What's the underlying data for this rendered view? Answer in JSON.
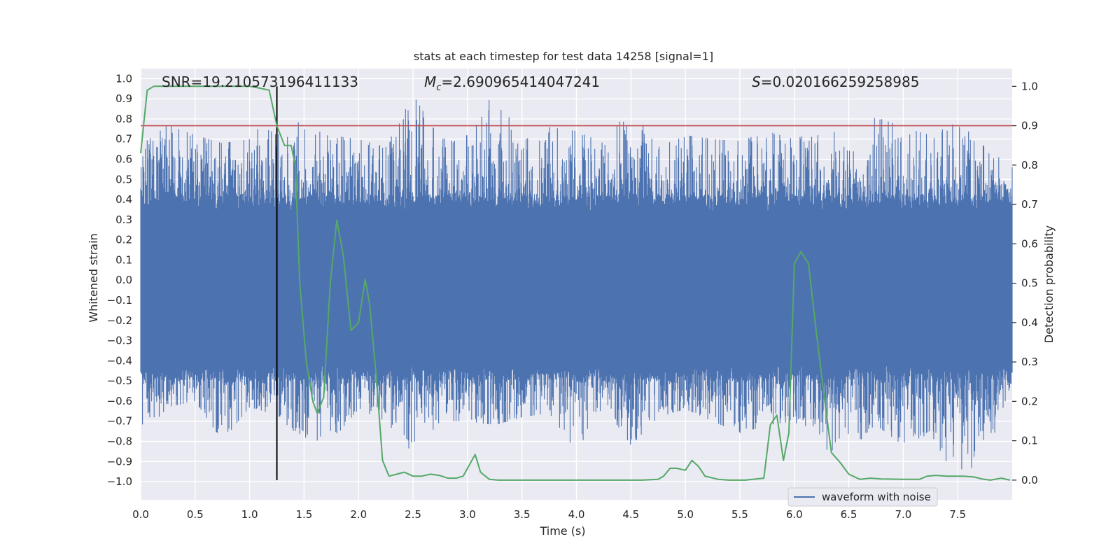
{
  "chart_data": {
    "type": "line",
    "title": "stats at each timestep for test data 14258 [signal=1]",
    "xlabel": "Time (s)",
    "ylabel": "Whitened strain",
    "ylabel_right": "Detection probability",
    "xlim": [
      0.0,
      8.0
    ],
    "ylim": [
      -1.09,
      1.05
    ],
    "ylim_right": [
      -0.05,
      1.045
    ],
    "xticks": [
      0.0,
      0.5,
      1.0,
      1.5,
      2.0,
      2.5,
      3.0,
      3.5,
      4.0,
      4.5,
      5.0,
      5.5,
      6.0,
      6.5,
      7.0,
      7.5
    ],
    "xtick_labels": [
      "0.0",
      "0.5",
      "1.0",
      "1.5",
      "2.0",
      "2.5",
      "3.0",
      "3.5",
      "4.0",
      "4.5",
      "5.0",
      "5.5",
      "6.0",
      "6.5",
      "7.0",
      "7.5"
    ],
    "yticks": [
      1.0,
      0.9,
      0.8,
      0.7,
      0.6,
      0.5,
      0.4,
      0.3,
      0.2,
      0.1,
      0.0,
      -0.1,
      -0.2,
      -0.3,
      -0.4,
      -0.5,
      -0.6,
      -0.7,
      -0.8,
      -0.9,
      -1.0
    ],
    "ytick_labels": [
      "1.0",
      "0.9",
      "0.8",
      "0.7",
      "0.6",
      "0.5",
      "0.4",
      "0.3",
      "0.2",
      "0.1",
      "0.0",
      "−0.1",
      "−0.2",
      "−0.3",
      "−0.4",
      "−0.5",
      "−0.6",
      "−0.7",
      "−0.8",
      "−0.9",
      "−1.0"
    ],
    "yticks_right": [
      1.0,
      0.9,
      0.8,
      0.7,
      0.6,
      0.5,
      0.4,
      0.3,
      0.2,
      0.1,
      0.0
    ],
    "ytick_right_labels": [
      "1.0",
      "0.9",
      "0.8",
      "0.7",
      "0.6",
      "0.5",
      "0.4",
      "0.3",
      "0.2",
      "0.1",
      "0.0"
    ],
    "annotations": {
      "snr": "SNR=19.210573196411133",
      "mc_symbol": "M",
      "mc_sub": "c",
      "mc_value": "=2.690965414047241",
      "s_symbol": "S",
      "s_value": "=0.020166259258985"
    },
    "threshold": 0.9,
    "event_time": 1.25,
    "legend": [
      "waveform with noise"
    ],
    "series": [
      {
        "name": "waveform with noise",
        "color": "#4c72b0",
        "kind": "noise-envelope",
        "x": [
          0.0,
          0.25,
          0.5,
          0.75,
          1.0,
          1.25,
          1.5,
          1.75,
          2.0,
          2.25,
          2.5,
          2.75,
          3.0,
          3.25,
          3.5,
          3.75,
          4.0,
          4.25,
          4.5,
          4.75,
          5.0,
          5.25,
          5.5,
          5.75,
          6.0,
          6.25,
          6.5,
          6.75,
          7.0,
          7.25,
          7.5,
          7.75,
          8.0
        ],
        "upper": [
          0.67,
          0.77,
          0.72,
          0.68,
          0.7,
          0.87,
          0.76,
          0.72,
          0.7,
          0.66,
          0.92,
          0.7,
          0.72,
          0.94,
          0.69,
          0.76,
          0.74,
          0.68,
          0.86,
          0.66,
          0.72,
          0.7,
          0.69,
          0.74,
          0.7,
          0.75,
          0.72,
          0.81,
          0.76,
          0.72,
          0.79,
          0.66,
          0.56
        ],
        "lower": [
          -0.78,
          -0.63,
          -0.6,
          -0.8,
          -0.63,
          -0.67,
          -0.8,
          -0.8,
          -0.64,
          -0.7,
          -0.86,
          -0.7,
          -0.7,
          -0.72,
          -0.68,
          -0.66,
          -0.85,
          -0.62,
          -0.82,
          -0.68,
          -0.64,
          -0.7,
          -0.76,
          -0.72,
          -0.7,
          -0.84,
          -0.85,
          -0.72,
          -0.82,
          -0.76,
          -1.0,
          -0.9,
          -0.5
        ]
      },
      {
        "name": "detection probability",
        "color": "#55a868",
        "axis": "right",
        "x": [
          0.0,
          0.06,
          0.12,
          0.2,
          0.4,
          0.6,
          0.8,
          1.0,
          1.1,
          1.18,
          1.25,
          1.32,
          1.38,
          1.42,
          1.46,
          1.52,
          1.58,
          1.62,
          1.68,
          1.74,
          1.8,
          1.86,
          1.93,
          2.0,
          2.06,
          2.1,
          2.16,
          2.22,
          2.28,
          2.35,
          2.42,
          2.5,
          2.58,
          2.66,
          2.74,
          2.82,
          2.9,
          2.96,
          3.02,
          3.07,
          3.12,
          3.2,
          3.28,
          3.4,
          3.6,
          3.8,
          4.0,
          4.2,
          4.4,
          4.6,
          4.75,
          4.8,
          4.86,
          4.92,
          5.0,
          5.06,
          5.12,
          5.18,
          5.3,
          5.4,
          5.55,
          5.72,
          5.78,
          5.84,
          5.9,
          5.95,
          6.0,
          6.06,
          6.13,
          6.2,
          6.28,
          6.34,
          6.42,
          6.5,
          6.6,
          6.7,
          6.8,
          7.0,
          7.15,
          7.22,
          7.3,
          7.4,
          7.55,
          7.65,
          7.72,
          7.8,
          7.9,
          7.98
        ],
        "y": [
          0.83,
          0.99,
          1.0,
          1.0,
          1.0,
          1.0,
          1.0,
          1.0,
          0.995,
          0.99,
          0.9,
          0.85,
          0.85,
          0.8,
          0.5,
          0.3,
          0.2,
          0.17,
          0.21,
          0.5,
          0.66,
          0.57,
          0.38,
          0.4,
          0.51,
          0.45,
          0.27,
          0.05,
          0.01,
          0.015,
          0.02,
          0.01,
          0.01,
          0.015,
          0.012,
          0.005,
          0.005,
          0.01,
          0.04,
          0.065,
          0.02,
          0.002,
          0.0,
          0.0,
          0.0,
          0.0,
          0.0,
          0.0,
          0.0,
          0.0,
          0.002,
          0.01,
          0.03,
          0.03,
          0.025,
          0.05,
          0.035,
          0.01,
          0.002,
          0.0,
          0.0,
          0.005,
          0.14,
          0.165,
          0.05,
          0.12,
          0.55,
          0.58,
          0.55,
          0.38,
          0.2,
          0.07,
          0.045,
          0.015,
          0.002,
          0.005,
          0.003,
          0.002,
          0.002,
          0.01,
          0.012,
          0.01,
          0.01,
          0.008,
          0.003,
          0.0,
          0.005,
          0.0
        ]
      }
    ]
  }
}
